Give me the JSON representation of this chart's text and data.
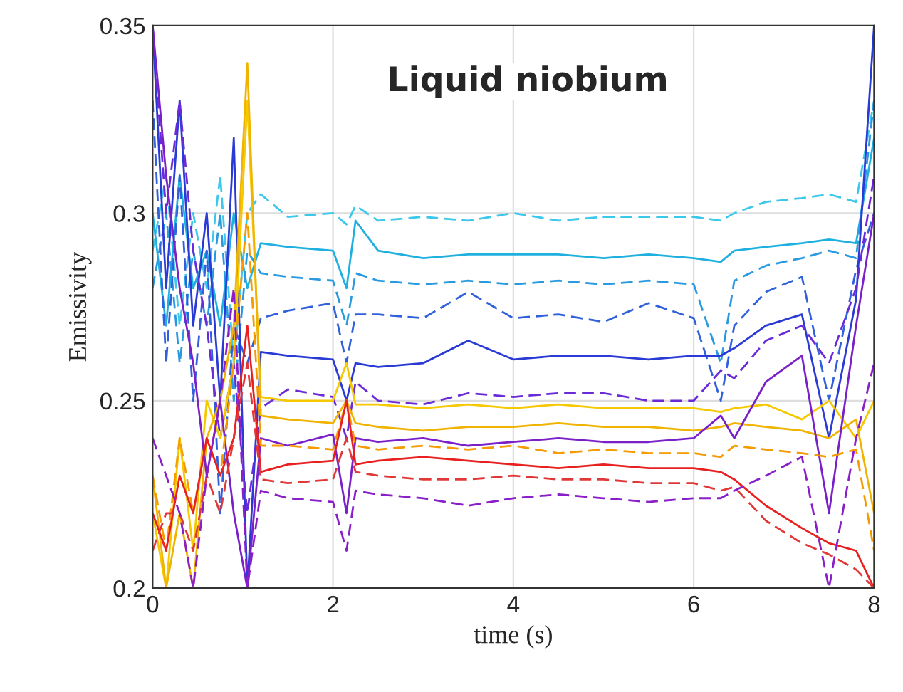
{
  "chart_data": {
    "type": "line",
    "xlabel": "time (s)",
    "ylabel": "Emissivity",
    "annotations": [
      "Liquid niobium"
    ],
    "x": [
      0,
      0.15,
      0.3,
      0.45,
      0.6,
      0.75,
      0.9,
      1.05,
      1.2,
      1.5,
      2.0,
      2.15,
      2.25,
      2.5,
      3.0,
      3.5,
      4.0,
      4.5,
      5.0,
      5.5,
      6.0,
      6.3,
      6.45,
      6.8,
      7.2,
      7.5,
      7.8,
      8.0
    ],
    "xlim": [
      0,
      8
    ],
    "xticks": [
      0,
      2,
      4,
      6,
      8
    ],
    "ylim": [
      0.2,
      0.35
    ],
    "yticks": [
      0.2,
      0.25,
      0.3,
      0.35
    ],
    "grid": true,
    "legend": false,
    "marker": "none",
    "series": [
      {
        "color": "#3cc8ea",
        "line_style": "dashed",
        "values": [
          0.29,
          0.31,
          0.27,
          0.3,
          0.28,
          0.31,
          0.26,
          0.3,
          0.305,
          0.299,
          0.3,
          0.297,
          0.302,
          0.298,
          0.299,
          0.298,
          0.3,
          0.298,
          0.299,
          0.299,
          0.299,
          0.298,
          0.3,
          0.303,
          0.304,
          0.305,
          0.303,
          0.33
        ]
      },
      {
        "color": "#1fb0e0",
        "line_style": "solid",
        "values": [
          0.3,
          0.27,
          0.31,
          0.28,
          0.29,
          0.27,
          0.3,
          0.28,
          0.292,
          0.291,
          0.29,
          0.28,
          0.298,
          0.29,
          0.288,
          0.289,
          0.289,
          0.289,
          0.288,
          0.289,
          0.288,
          0.287,
          0.29,
          0.291,
          0.292,
          0.293,
          0.292,
          0.32
        ]
      },
      {
        "color": "#2a9ae0",
        "line_style": "dashed",
        "values": [
          0.28,
          0.3,
          0.26,
          0.29,
          0.27,
          0.3,
          0.25,
          0.29,
          0.284,
          0.283,
          0.282,
          0.27,
          0.284,
          0.282,
          0.281,
          0.282,
          0.281,
          0.282,
          0.281,
          0.282,
          0.281,
          0.26,
          0.282,
          0.286,
          0.288,
          0.29,
          0.288,
          0.33
        ]
      },
      {
        "color": "#3060dc",
        "line_style": "dashed",
        "values": [
          0.33,
          0.26,
          0.31,
          0.25,
          0.29,
          0.22,
          0.27,
          0.26,
          0.272,
          0.274,
          0.276,
          0.26,
          0.273,
          0.273,
          0.272,
          0.279,
          0.272,
          0.273,
          0.271,
          0.276,
          0.272,
          0.25,
          0.27,
          0.279,
          0.283,
          0.25,
          0.285,
          0.3
        ]
      },
      {
        "color": "#2a3ad4",
        "line_style": "solid",
        "values": [
          0.35,
          0.28,
          0.33,
          0.27,
          0.3,
          0.25,
          0.32,
          0.2,
          0.263,
          0.262,
          0.261,
          0.25,
          0.26,
          0.259,
          0.26,
          0.266,
          0.261,
          0.262,
          0.262,
          0.261,
          0.262,
          0.262,
          0.264,
          0.27,
          0.273,
          0.24,
          0.277,
          0.35
        ]
      },
      {
        "color": "#6a2ad8",
        "line_style": "dashed",
        "values": [
          0.35,
          0.3,
          0.33,
          0.29,
          0.27,
          0.24,
          0.26,
          0.22,
          0.248,
          0.253,
          0.251,
          0.24,
          0.255,
          0.25,
          0.249,
          0.252,
          0.251,
          0.252,
          0.252,
          0.25,
          0.25,
          0.258,
          0.256,
          0.266,
          0.27,
          0.26,
          0.28,
          0.31
        ]
      },
      {
        "color": "#f5c800",
        "line_style": "solid",
        "values": [
          0.22,
          0.2,
          0.24,
          0.21,
          0.25,
          0.24,
          0.26,
          0.33,
          0.251,
          0.25,
          0.25,
          0.26,
          0.249,
          0.249,
          0.248,
          0.249,
          0.248,
          0.249,
          0.248,
          0.248,
          0.248,
          0.247,
          0.248,
          0.249,
          0.245,
          0.25,
          0.24,
          0.25
        ]
      },
      {
        "color": "#f0b400",
        "line_style": "solid",
        "values": [
          0.23,
          0.2,
          0.22,
          0.2,
          0.24,
          0.25,
          0.27,
          0.34,
          0.246,
          0.245,
          0.244,
          0.25,
          0.244,
          0.243,
          0.242,
          0.243,
          0.243,
          0.244,
          0.243,
          0.243,
          0.242,
          0.243,
          0.244,
          0.243,
          0.242,
          0.24,
          0.245,
          0.22
        ]
      },
      {
        "color": "#7a20c8",
        "line_style": "solid",
        "values": [
          0.35,
          0.31,
          0.28,
          0.26,
          0.23,
          0.25,
          0.22,
          0.2,
          0.24,
          0.238,
          0.241,
          0.22,
          0.24,
          0.239,
          0.24,
          0.238,
          0.239,
          0.24,
          0.239,
          0.239,
          0.24,
          0.246,
          0.24,
          0.255,
          0.262,
          0.22,
          0.27,
          0.3
        ]
      },
      {
        "color": "#f59a00",
        "line_style": "dashed",
        "values": [
          0.23,
          0.21,
          0.24,
          0.22,
          0.24,
          0.23,
          0.26,
          0.3,
          0.238,
          0.238,
          0.237,
          0.25,
          0.238,
          0.237,
          0.238,
          0.237,
          0.238,
          0.236,
          0.237,
          0.236,
          0.236,
          0.235,
          0.238,
          0.237,
          0.236,
          0.235,
          0.237,
          0.21
        ]
      },
      {
        "color": "#e82020",
        "line_style": "solid",
        "values": [
          0.22,
          0.21,
          0.23,
          0.22,
          0.24,
          0.23,
          0.24,
          0.27,
          0.231,
          0.233,
          0.234,
          0.25,
          0.233,
          0.234,
          0.235,
          0.234,
          0.233,
          0.232,
          0.233,
          0.232,
          0.232,
          0.231,
          0.229,
          0.222,
          0.216,
          0.212,
          0.21,
          0.2
        ]
      },
      {
        "color": "#e03838",
        "line_style": "dashed",
        "values": [
          0.21,
          0.22,
          0.22,
          0.21,
          0.23,
          0.22,
          0.24,
          0.26,
          0.229,
          0.228,
          0.229,
          0.24,
          0.231,
          0.23,
          0.229,
          0.229,
          0.23,
          0.229,
          0.229,
          0.228,
          0.228,
          0.226,
          0.227,
          0.218,
          0.212,
          0.209,
          0.205,
          0.2
        ]
      },
      {
        "color": "#8a1ec8",
        "line_style": "dashed",
        "values": [
          0.24,
          0.23,
          0.22,
          0.2,
          0.23,
          0.25,
          0.28,
          0.2,
          0.226,
          0.224,
          0.223,
          0.21,
          0.226,
          0.225,
          0.224,
          0.222,
          0.224,
          0.225,
          0.224,
          0.223,
          0.224,
          0.224,
          0.226,
          0.23,
          0.235,
          0.2,
          0.24,
          0.26
        ]
      }
    ]
  }
}
